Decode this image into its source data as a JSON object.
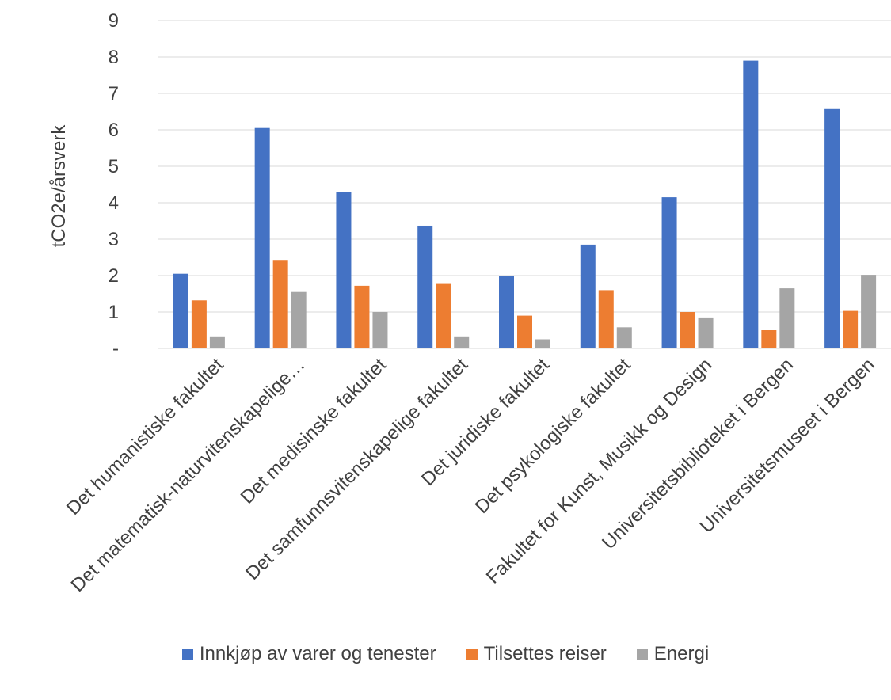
{
  "chart_data": {
    "type": "bar",
    "title": "",
    "ylabel": "tCO2e/årsverk",
    "xlabel": "",
    "ylim": [
      0,
      9
    ],
    "y_ticks": [
      "-",
      "1",
      "2",
      "3",
      "4",
      "5",
      "6",
      "7",
      "8",
      "9"
    ],
    "grid": true,
    "legend_position": "bottom",
    "categories": [
      "Det humanistiske fakultet",
      "Det matematisk-naturvitenskapelige…",
      "Det medisinske fakultet",
      "Det samfunnsvitenskapelige fakultet",
      "Det juridiske fakultet",
      "Det psykologiske fakultet",
      "Fakultet for Kunst, Musikk og Design",
      "Universitetsbiblioteket i Bergen",
      "Universitetsmuseet i Bergen"
    ],
    "series": [
      {
        "name": "Innkjøp av varer og tenester",
        "color": "#4472C4",
        "values": [
          2.05,
          6.05,
          4.3,
          3.37,
          2.0,
          2.85,
          4.15,
          7.9,
          6.57
        ]
      },
      {
        "name": "Tilsettes reiser",
        "color": "#ED7D31",
        "values": [
          1.32,
          2.43,
          1.72,
          1.77,
          0.9,
          1.6,
          1.0,
          0.5,
          1.03
        ]
      },
      {
        "name": "Energi",
        "color": "#A5A5A5",
        "values": [
          0.33,
          1.55,
          1.0,
          0.33,
          0.25,
          0.58,
          0.85,
          1.65,
          2.02
        ]
      }
    ]
  }
}
